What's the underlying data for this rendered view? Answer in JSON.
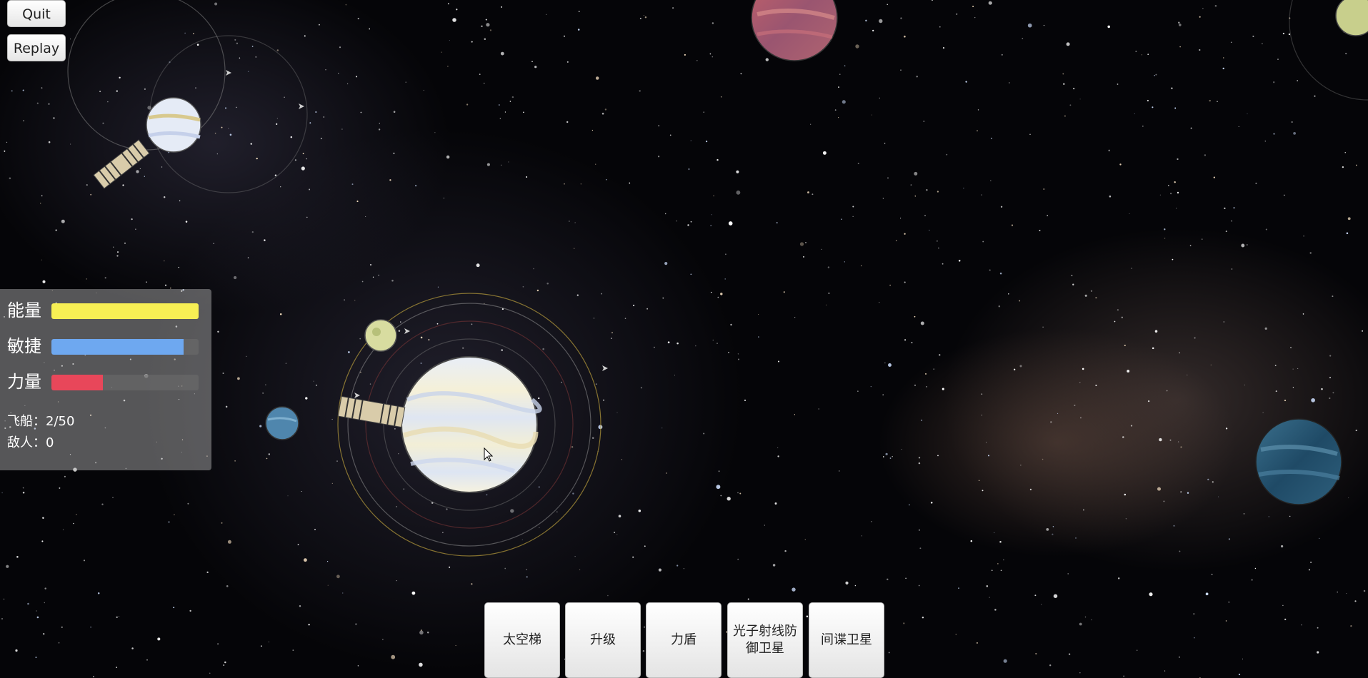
{
  "controls": {
    "quit_label": "Quit",
    "replay_label": "Replay"
  },
  "stats": {
    "energy": {
      "label": "能量",
      "level": 1.0,
      "color": "#f7ef54"
    },
    "agility": {
      "label": "敏捷",
      "level": 0.9,
      "color": "#6ea8f0"
    },
    "power": {
      "label": "力量",
      "level": 0.35,
      "color": "#e8475a"
    },
    "ships_text": "飞船：2/50",
    "enemies_text": "敌人：0"
  },
  "actions": [
    {
      "label": "太空梯"
    },
    {
      "label": "升级"
    },
    {
      "label": "力盾"
    },
    {
      "label": "光子射线防御卫星"
    },
    {
      "label": "间谍卫星"
    }
  ],
  "scene": {
    "icons": [
      "planet-icon",
      "satellite-icon",
      "spaceship-icon",
      "cursor-icon"
    ],
    "colors": {
      "background": "#050508",
      "orbit": "#c9b04a"
    }
  }
}
